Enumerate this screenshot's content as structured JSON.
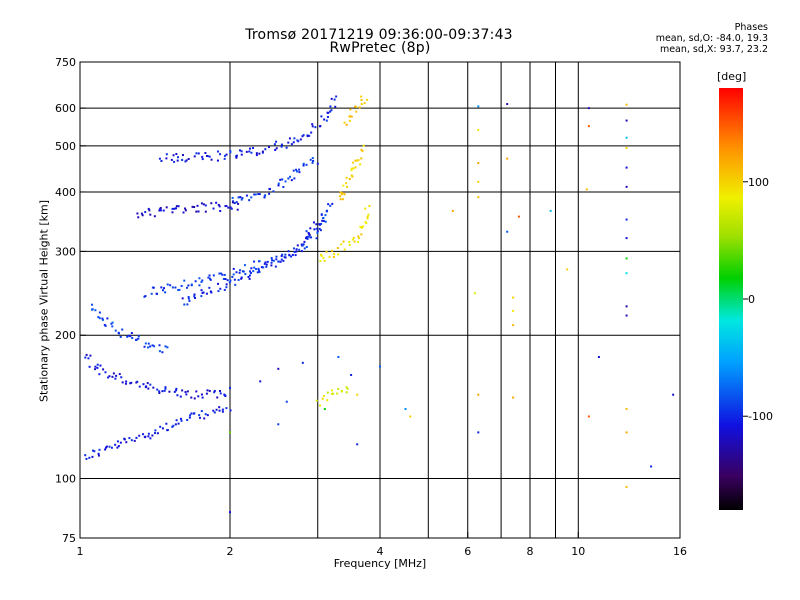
{
  "header": {
    "title_line1": "Tromsø 20171219 09:36:00-09:37:43",
    "title_line2": "RwPretec (8p)"
  },
  "stats": {
    "heading": "Phases",
    "line_o": "mean, sd,O: -84.0, 19.3",
    "line_x": "mean, sd,X:  93.7, 23.2"
  },
  "colorbar": {
    "unit_label": "[deg]",
    "range": [
      -180,
      180
    ],
    "tick_labels": [
      "100",
      "0",
      "-100"
    ],
    "tick_values": [
      100,
      0,
      -100
    ]
  },
  "chart_data": {
    "type": "scatter",
    "xlabel": "Frequency [MHz]",
    "ylabel": "Stationary phase Virtual Height [km]",
    "xscale": "log",
    "yscale": "log",
    "xlim": [
      1,
      16
    ],
    "ylim": [
      75,
      750
    ],
    "x_ticks": [
      1,
      2,
      4,
      6,
      8,
      10,
      16
    ],
    "x_tick_labels": [
      "1",
      "2",
      "4",
      "6",
      "8",
      "10",
      "16"
    ],
    "x_gridlines": [
      2,
      3,
      4,
      5,
      6,
      7,
      8,
      9,
      10
    ],
    "y_ticks": [
      75,
      100,
      200,
      300,
      400,
      500,
      600,
      750
    ],
    "y_tick_labels": [
      "75",
      "100",
      "200",
      "300",
      "400",
      "500",
      "600",
      "750"
    ],
    "y_gridlines": [
      100,
      200,
      300,
      400,
      500,
      600
    ],
    "grid": true,
    "color_encoding": "phase (deg)",
    "traces": [
      {
        "desc": "O low",
        "x": [
          1.02,
          1.2,
          1.4,
          1.6,
          1.8,
          2.0
        ],
        "y": [
          111,
          118,
          125,
          132,
          137,
          140
        ],
        "phase": -105
      },
      {
        "desc": "O mid",
        "x": [
          1.02,
          1.1,
          1.3,
          1.5,
          1.7,
          2.0
        ],
        "y": [
          180,
          168,
          158,
          152,
          150,
          150
        ],
        "phase": -110
      },
      {
        "desc": "O 200",
        "x": [
          1.05,
          1.15,
          1.3,
          1.5
        ],
        "y": [
          230,
          210,
          195,
          185
        ],
        "phase": -90
      },
      {
        "desc": "O F main",
        "x": [
          1.35,
          1.6,
          2.0,
          2.4,
          2.8,
          3.05,
          3.2
        ],
        "y": [
          245,
          255,
          268,
          285,
          305,
          335,
          380
        ],
        "phase": -95
      },
      {
        "desc": "O F2",
        "x": [
          1.6,
          2.0,
          2.4,
          2.7,
          2.9,
          3.1
        ],
        "y": [
          235,
          258,
          280,
          300,
          330,
          360
        ],
        "phase": -100
      },
      {
        "desc": "O F upper",
        "x": [
          2.0,
          2.3,
          2.6,
          2.8,
          3.0
        ],
        "y": [
          385,
          395,
          420,
          450,
          470
        ],
        "phase": -95
      },
      {
        "desc": "O top",
        "x": [
          1.45,
          1.8,
          2.2,
          2.6,
          2.9,
          3.1,
          3.3
        ],
        "y": [
          470,
          473,
          485,
          505,
          535,
          575,
          630
        ],
        "phase": -105
      },
      {
        "desc": "O 370",
        "x": [
          1.3,
          1.5,
          1.7,
          1.9,
          2.1
        ],
        "y": [
          360,
          365,
          370,
          372,
          375
        ],
        "phase": -115
      },
      {
        "desc": "X F",
        "x": [
          3.0,
          3.3,
          3.6,
          3.8
        ],
        "y": [
          290,
          300,
          320,
          370
        ],
        "phase": 95
      },
      {
        "desc": "X upper",
        "x": [
          3.3,
          3.5,
          3.7
        ],
        "y": [
          380,
          430,
          500
        ],
        "phase": 100
      },
      {
        "desc": "X top",
        "x": [
          3.4,
          3.6,
          3.75
        ],
        "y": [
          560,
          600,
          640
        ],
        "phase": 105
      },
      {
        "desc": "X low",
        "x": [
          3.0,
          3.2,
          3.5
        ],
        "y": [
          145,
          150,
          155
        ],
        "phase": 80
      }
    ],
    "scatter_points": [
      {
        "x": 6.3,
        "y": 605,
        "phase": -60
      },
      {
        "x": 6.3,
        "y": 540,
        "phase": 90
      },
      {
        "x": 6.3,
        "y": 460,
        "phase": 120
      },
      {
        "x": 6.3,
        "y": 420,
        "phase": 100
      },
      {
        "x": 6.3,
        "y": 390,
        "phase": 110
      },
      {
        "x": 6.2,
        "y": 245,
        "phase": 80
      },
      {
        "x": 6.3,
        "y": 150,
        "phase": 120
      },
      {
        "x": 6.3,
        "y": 125,
        "phase": -100
      },
      {
        "x": 7.2,
        "y": 612,
        "phase": -120
      },
      {
        "x": 7.2,
        "y": 470,
        "phase": 120
      },
      {
        "x": 7.2,
        "y": 330,
        "phase": -80
      },
      {
        "x": 7.4,
        "y": 240,
        "phase": 100
      },
      {
        "x": 7.4,
        "y": 225,
        "phase": 90
      },
      {
        "x": 7.4,
        "y": 210,
        "phase": 110
      },
      {
        "x": 7.6,
        "y": 355,
        "phase": 150
      },
      {
        "x": 7.4,
        "y": 148,
        "phase": 120
      },
      {
        "x": 5.6,
        "y": 365,
        "phase": 120
      },
      {
        "x": 4.5,
        "y": 140,
        "phase": -60
      },
      {
        "x": 4.6,
        "y": 135,
        "phase": 100
      },
      {
        "x": 8.8,
        "y": 365,
        "phase": -40
      },
      {
        "x": 9.5,
        "y": 275,
        "phase": 100
      },
      {
        "x": 10.5,
        "y": 600,
        "phase": -120
      },
      {
        "x": 10.5,
        "y": 550,
        "phase": 150
      },
      {
        "x": 10.4,
        "y": 405,
        "phase": 110
      },
      {
        "x": 11.0,
        "y": 180,
        "phase": -110
      },
      {
        "x": 10.5,
        "y": 135,
        "phase": 150
      },
      {
        "x": 12.5,
        "y": 610,
        "phase": 110
      },
      {
        "x": 12.5,
        "y": 565,
        "phase": -120
      },
      {
        "x": 12.5,
        "y": 520,
        "phase": -40
      },
      {
        "x": 12.5,
        "y": 495,
        "phase": 100
      },
      {
        "x": 12.5,
        "y": 450,
        "phase": -110
      },
      {
        "x": 12.5,
        "y": 410,
        "phase": -120
      },
      {
        "x": 12.5,
        "y": 350,
        "phase": -100
      },
      {
        "x": 12.5,
        "y": 320,
        "phase": -110
      },
      {
        "x": 12.5,
        "y": 290,
        "phase": 20
      },
      {
        "x": 12.5,
        "y": 270,
        "phase": -20
      },
      {
        "x": 12.5,
        "y": 230,
        "phase": -130
      },
      {
        "x": 12.5,
        "y": 220,
        "phase": -120
      },
      {
        "x": 12.5,
        "y": 140,
        "phase": 110
      },
      {
        "x": 12.5,
        "y": 125,
        "phase": 120
      },
      {
        "x": 12.5,
        "y": 96,
        "phase": 110
      },
      {
        "x": 14.0,
        "y": 106,
        "phase": -100
      },
      {
        "x": 15.5,
        "y": 150,
        "phase": -110
      },
      {
        "x": 2.0,
        "y": 85,
        "phase": -110
      },
      {
        "x": 2.0,
        "y": 125,
        "phase": 40
      },
      {
        "x": 2.0,
        "y": 155,
        "phase": -100
      },
      {
        "x": 2.3,
        "y": 160,
        "phase": -110
      },
      {
        "x": 2.5,
        "y": 170,
        "phase": -120
      },
      {
        "x": 2.6,
        "y": 145,
        "phase": -90
      },
      {
        "x": 2.8,
        "y": 175,
        "phase": -100
      },
      {
        "x": 3.3,
        "y": 180,
        "phase": -80
      },
      {
        "x": 3.5,
        "y": 165,
        "phase": -100
      },
      {
        "x": 4.0,
        "y": 172,
        "phase": -80
      },
      {
        "x": 3.1,
        "y": 140,
        "phase": 20
      },
      {
        "x": 3.6,
        "y": 118,
        "phase": -100
      },
      {
        "x": 2.5,
        "y": 130,
        "phase": -90
      },
      {
        "x": 3.6,
        "y": 150,
        "phase": 100
      }
    ]
  }
}
